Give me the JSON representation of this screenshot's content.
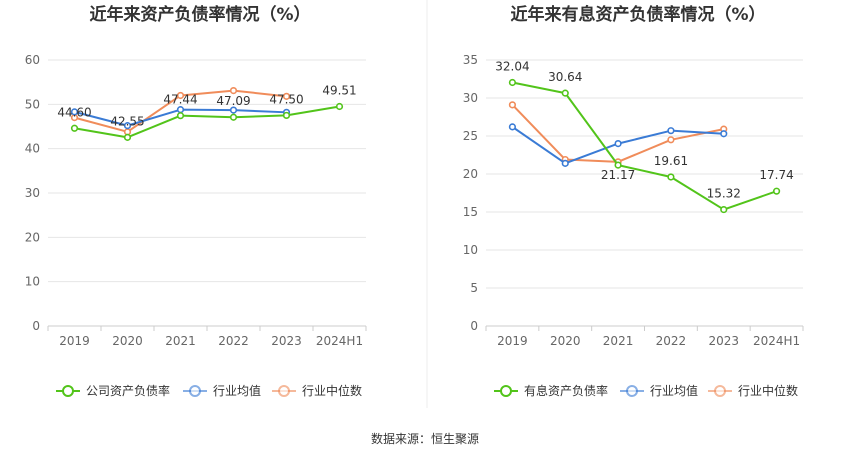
{
  "source_label": "数据来源：恒生聚源",
  "chart_data": [
    {
      "type": "line",
      "title": "近年来资产负债率情况（%）",
      "categories": [
        "2019",
        "2020",
        "2021",
        "2022",
        "2023",
        "2024H1"
      ],
      "ylim": [
        0,
        60
      ],
      "yticks": [
        0,
        10,
        20,
        30,
        40,
        50,
        60
      ],
      "grid": true,
      "legend_position": "bottom",
      "series": [
        {
          "name": "公司资产负债率",
          "color": "#52c41a",
          "values": [
            44.6,
            42.55,
            47.44,
            47.09,
            47.5,
            49.51
          ],
          "labels": [
            "44.60",
            "42.55",
            "47.44",
            "47.09",
            "47.50",
            "49.51"
          ]
        },
        {
          "name": "行业均值",
          "color": "#3a7bd5",
          "values": [
            48.3,
            45.2,
            48.8,
            48.7,
            48.2,
            null
          ],
          "labels": []
        },
        {
          "name": "行业中位数",
          "color": "#f08c5a",
          "values": [
            47.0,
            43.8,
            52.0,
            53.1,
            51.8,
            null
          ],
          "labels": []
        }
      ]
    },
    {
      "type": "line",
      "title": "近年来有息资产负债率情况（%）",
      "categories": [
        "2019",
        "2020",
        "2021",
        "2022",
        "2023",
        "2024H1"
      ],
      "ylim": [
        0,
        35
      ],
      "yticks": [
        0,
        5,
        10,
        15,
        20,
        25,
        30,
        35
      ],
      "grid": true,
      "legend_position": "bottom",
      "series": [
        {
          "name": "有息资产负债率",
          "color": "#52c41a",
          "values": [
            32.04,
            30.64,
            21.17,
            19.61,
            15.32,
            17.74
          ],
          "labels": [
            "32.04",
            "30.64",
            "21.17",
            "19.61",
            "15.32",
            "17.74"
          ]
        },
        {
          "name": "行业均值",
          "color": "#3a7bd5",
          "values": [
            26.2,
            21.4,
            24.0,
            25.7,
            25.3,
            null
          ],
          "labels": []
        },
        {
          "name": "行业中位数",
          "color": "#f08c5a",
          "values": [
            29.1,
            21.9,
            21.6,
            24.5,
            25.9,
            null
          ],
          "labels": []
        }
      ]
    }
  ]
}
